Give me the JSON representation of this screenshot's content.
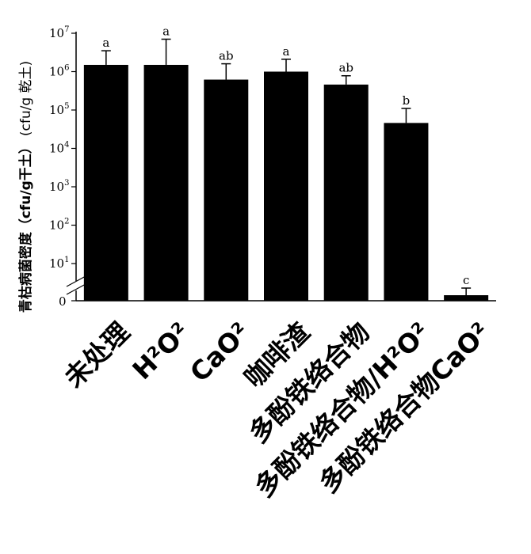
{
  "chart_data": {
    "type": "bar",
    "ylabel_main": "青枯病菌密度（cfu/g干土）",
    "ylabel_unit": "(cfu/g 乾土)",
    "yscale": "log",
    "ylim": [
      1,
      10000000
    ],
    "broken_axis": true,
    "zero_label": "0",
    "yticks": [
      {
        "base": "10",
        "exp": "7",
        "value": 10000000
      },
      {
        "base": "10",
        "exp": "6",
        "value": 1000000
      },
      {
        "base": "10",
        "exp": "5",
        "value": 100000
      },
      {
        "base": "10",
        "exp": "4",
        "value": 10000
      },
      {
        "base": "10",
        "exp": "3",
        "value": 1000
      },
      {
        "base": "10",
        "exp": "2",
        "value": 100
      },
      {
        "base": "10",
        "exp": "1",
        "value": 10
      }
    ],
    "categories": [
      {
        "label": "未处理",
        "value": 1500000,
        "err_high": 3500000,
        "sig": "a"
      },
      {
        "label": "H²O²",
        "value": 1500000,
        "err_high": 7000000,
        "sig": "a"
      },
      {
        "label": "CaO²",
        "value": 620000,
        "err_high": 1600000,
        "sig": "ab"
      },
      {
        "label": "咖啡渣",
        "value": 1000000,
        "err_high": 2100000,
        "sig": "a"
      },
      {
        "label": "多酚铁络合物",
        "value": 460000,
        "err_high": 780000,
        "sig": "ab"
      },
      {
        "label": "多酚铁络合物/H²O²",
        "value": 46000,
        "err_high": 110000,
        "sig": "b"
      },
      {
        "label": "多酚铁络合物CaO²",
        "value": 0,
        "err_high": 0,
        "sig": "c"
      }
    ],
    "bar_color": "#000000",
    "grid": false,
    "legend": "none"
  }
}
